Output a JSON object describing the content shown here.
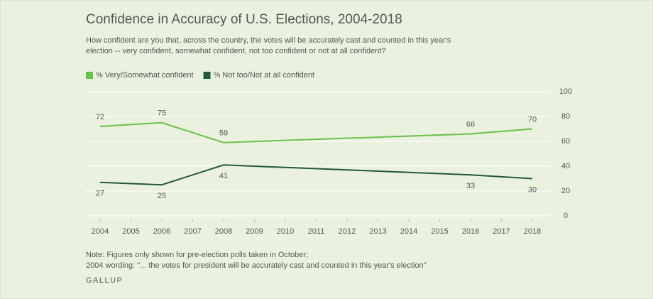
{
  "chart_data": {
    "type": "line",
    "title": "Confidence in Accuracy of U.S. Elections, 2004-2018",
    "subtitle": [
      "How confident are you that, across the country, the votes will be accurately cast and counted in this year's",
      "election -- very confident, somewhat confident, not too confident or not at all confident?"
    ],
    "x": [
      2004,
      2006,
      2008,
      2016,
      2018
    ],
    "series": [
      {
        "name": "% Very/Somewhat confident",
        "color": "#6abf4b",
        "values": [
          72,
          75,
          59,
          66,
          70
        ]
      },
      {
        "name": "% Not too/Not at all confident",
        "color": "#23573a",
        "values": [
          27,
          25,
          41,
          33,
          30
        ]
      }
    ],
    "xlim": [
      2004,
      2018
    ],
    "xticks": [
      2004,
      2005,
      2006,
      2007,
      2008,
      2009,
      2010,
      2011,
      2012,
      2013,
      2014,
      2015,
      2016,
      2017,
      2018
    ],
    "ylim": [
      0,
      100
    ],
    "yticks": [
      0,
      20,
      40,
      60,
      80,
      100
    ],
    "grid": true,
    "notes": [
      "Note: Figures only shown for pre-election polls taken in October;",
      "2004 wording: \"... the votes for president will be accurately cast and counted in this year's election\""
    ],
    "source": "GALLUP"
  }
}
